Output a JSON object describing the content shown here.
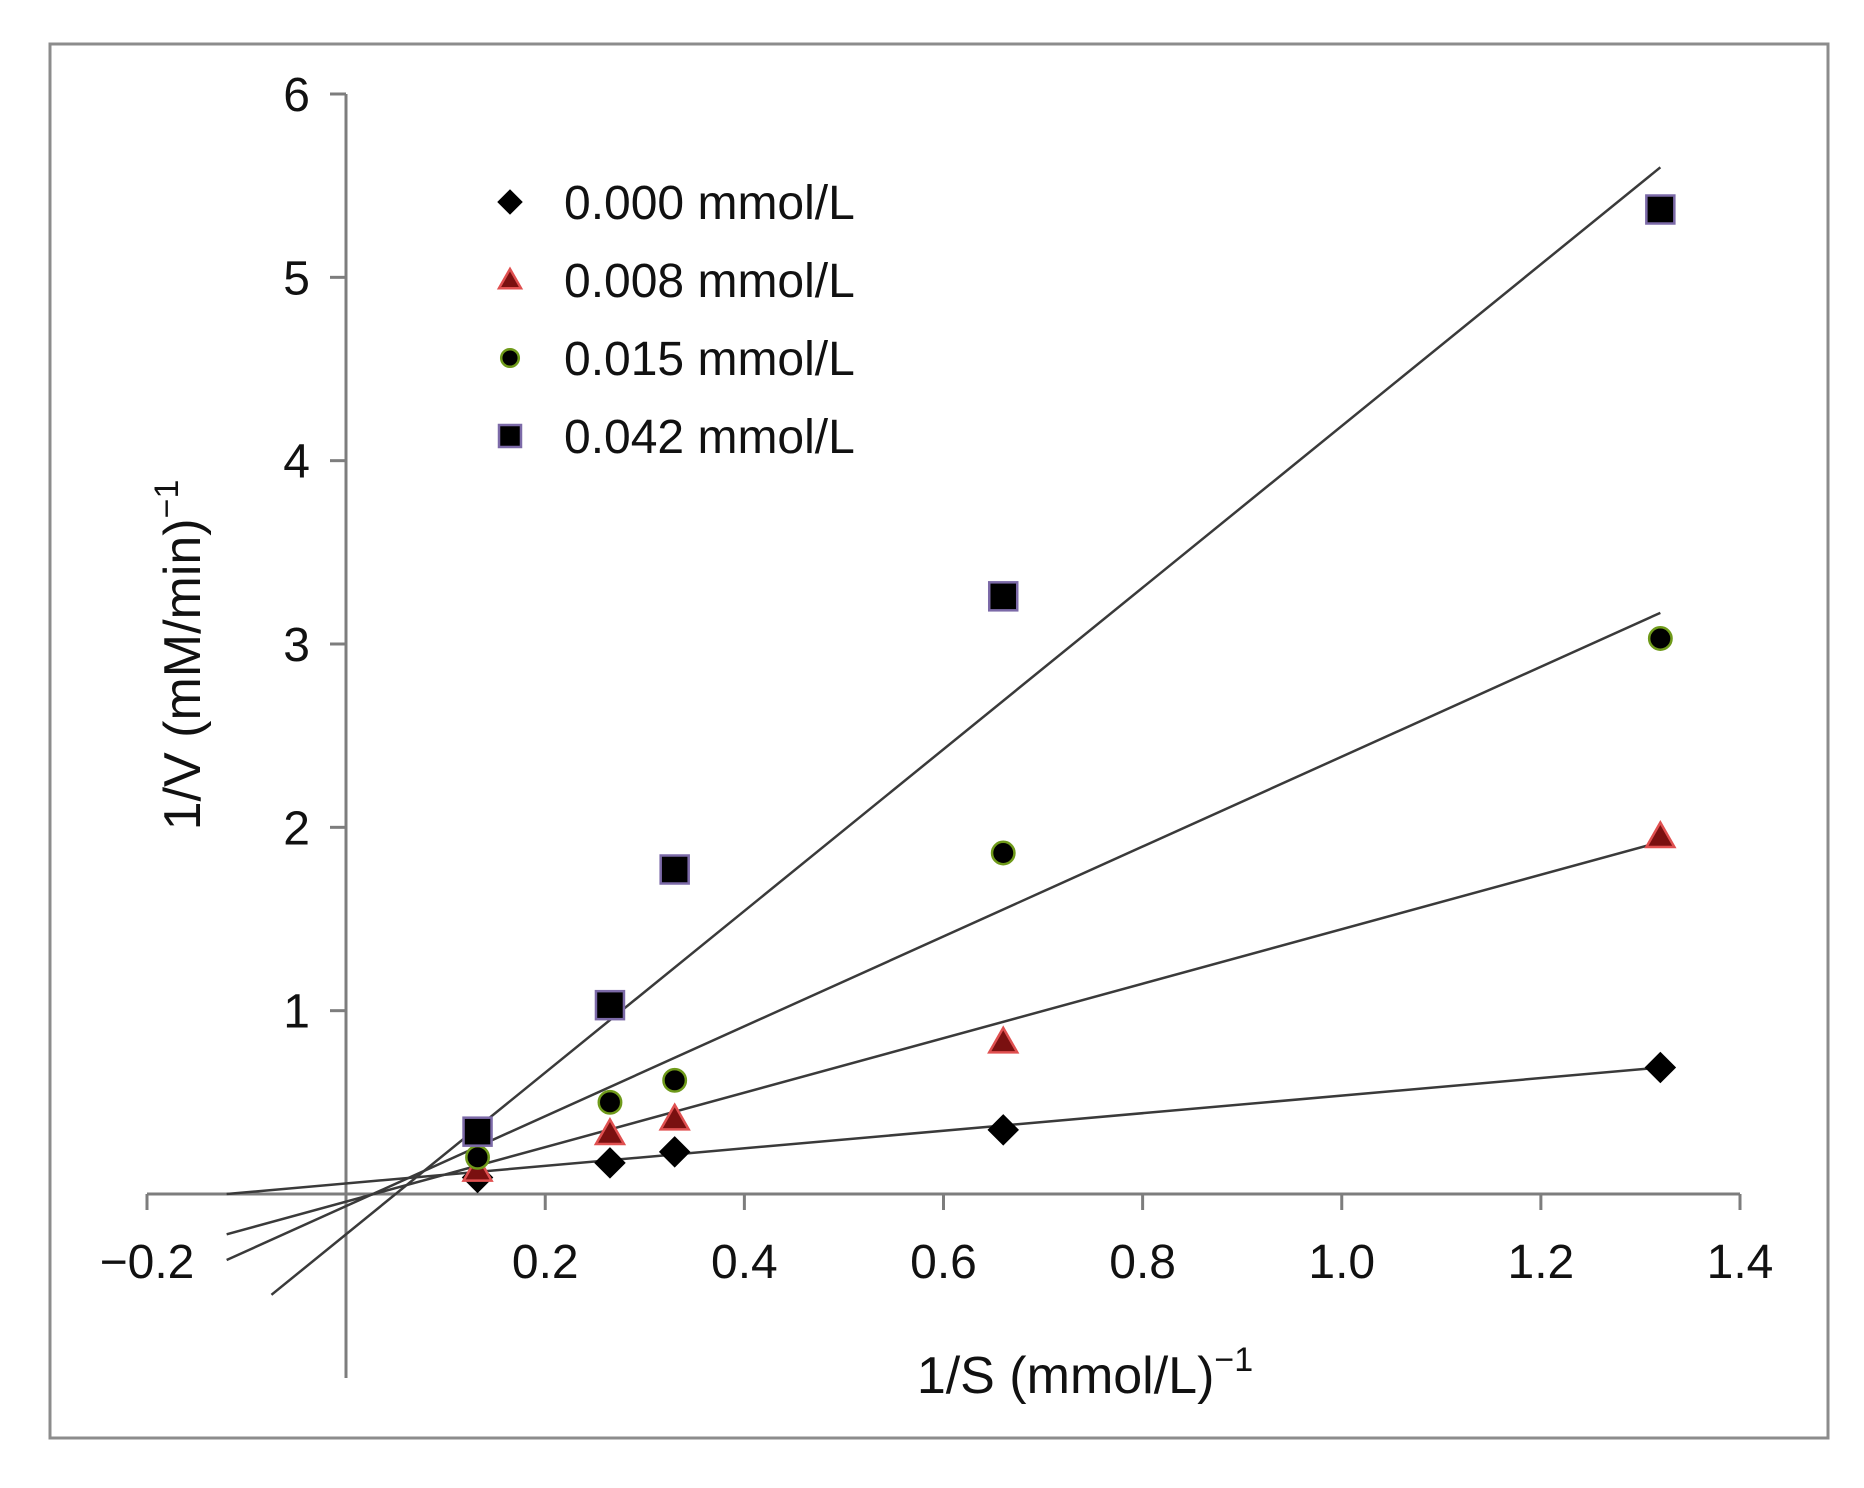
{
  "chart_data": {
    "type": "scatter",
    "title": "",
    "xlabel": "1/S (mmol/L)",
    "xlabel_sup": "−1",
    "ylabel": "1/V (mM/min)",
    "ylabel_sup": "−1",
    "xlim": [
      -0.2,
      1.4
    ],
    "ylim": [
      -1,
      6
    ],
    "x_ticks": [
      -0.2,
      0.2,
      0.4,
      0.6,
      0.8,
      1.0,
      1.2,
      1.4
    ],
    "x_tick_labels": [
      "−0.2",
      "0.2",
      "0.4",
      "0.6",
      "0.8",
      "1.0",
      "1.2",
      "1.4"
    ],
    "y_ticks": [
      1,
      2,
      3,
      4,
      5,
      6
    ],
    "y_tick_labels": [
      "1",
      "2",
      "3",
      "4",
      "5",
      "6"
    ],
    "grid": false,
    "legend_position": "top-left",
    "series": [
      {
        "name": "0.000 mmol/L",
        "marker": "diamond",
        "color": "#000000",
        "edge_color": "#000000",
        "x": [
          0.132,
          0.265,
          0.33,
          0.66,
          1.32
        ],
        "y": [
          0.09,
          0.17,
          0.23,
          0.35,
          0.69
        ],
        "fit_line": {
          "x": [
            -0.12,
            1.32
          ],
          "y": [
            0.0,
            0.69
          ]
        }
      },
      {
        "name": "0.008 mmol/L",
        "marker": "triangle",
        "color": "#7a1010",
        "edge_color": "#e05050",
        "x": [
          0.132,
          0.265,
          0.33,
          0.66,
          1.32
        ],
        "y": [
          0.13,
          0.33,
          0.41,
          0.83,
          1.95
        ],
        "fit_line": {
          "x": [
            -0.12,
            1.32
          ],
          "y": [
            -0.22,
            1.92
          ]
        }
      },
      {
        "name": "0.015 mmol/L",
        "marker": "circle",
        "color": "#000000",
        "edge_color": "#6f9a1a",
        "x": [
          0.132,
          0.265,
          0.33,
          0.66,
          1.32
        ],
        "y": [
          0.2,
          0.5,
          0.62,
          1.86,
          3.03
        ],
        "fit_line": {
          "x": [
            -0.12,
            1.32
          ],
          "y": [
            -0.36,
            3.17
          ]
        }
      },
      {
        "name": "0.042 mmol/L",
        "marker": "square",
        "color": "#000000",
        "edge_color": "#7c6aa8",
        "x": [
          0.132,
          0.265,
          0.33,
          0.66,
          1.32
        ],
        "y": [
          0.34,
          1.03,
          1.77,
          3.26,
          5.37
        ],
        "fit_line": {
          "x": [
            -0.075,
            1.32
          ],
          "y": [
            -0.55,
            5.6
          ]
        }
      }
    ]
  }
}
